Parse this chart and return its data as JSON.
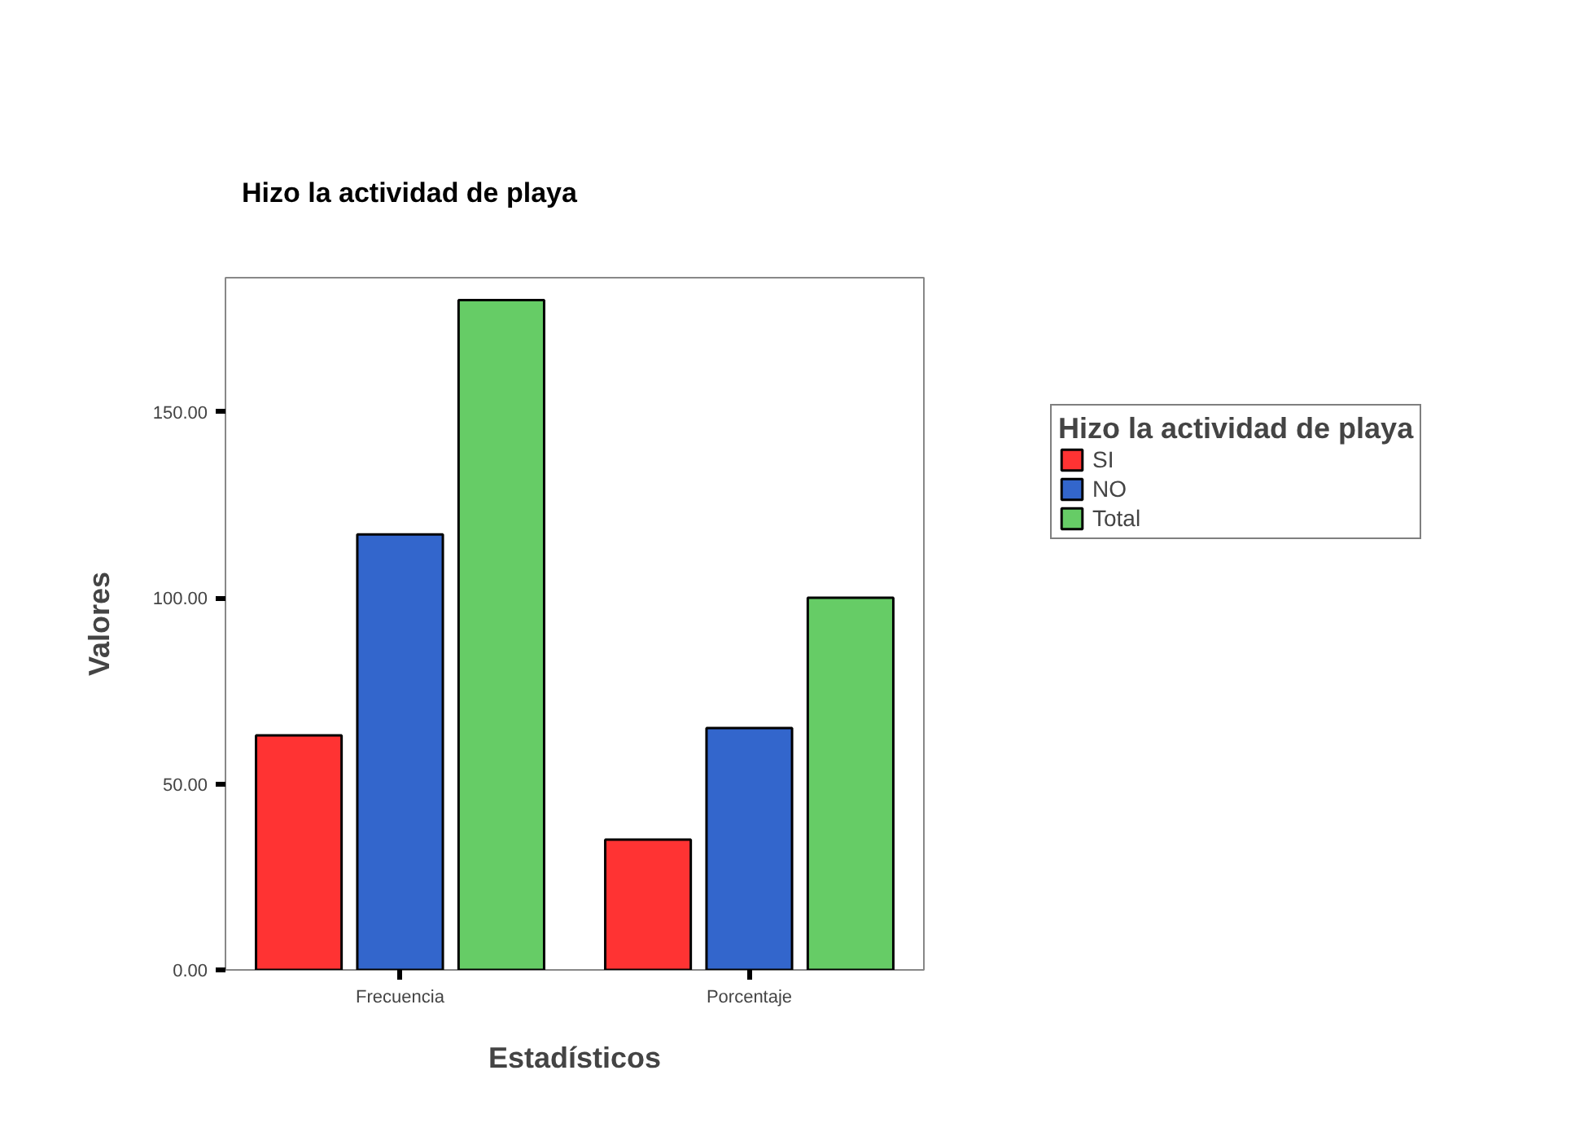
{
  "chart_data": {
    "type": "bar",
    "title": "Hizo la actividad de playa",
    "xlabel": "Estadísticos",
    "ylabel": "Valores",
    "legend_title": "Hizo la actividad de playa",
    "categories": [
      "Frecuencia",
      "Porcentaje"
    ],
    "series": [
      {
        "name": "SI",
        "color": "#ff3333",
        "values": [
          63,
          35
        ]
      },
      {
        "name": "NO",
        "color": "#3366cc",
        "values": [
          117,
          65
        ]
      },
      {
        "name": "Total",
        "color": "#66cc66",
        "values": [
          180,
          100
        ]
      }
    ],
    "ylim": [
      0,
      186
    ],
    "yticks": [
      {
        "value": 0,
        "label": "0.00"
      },
      {
        "value": 50,
        "label": "50.00"
      },
      {
        "value": 100,
        "label": "100.00"
      },
      {
        "value": 150,
        "label": "150.00"
      }
    ],
    "grid": false,
    "legend": "right"
  }
}
